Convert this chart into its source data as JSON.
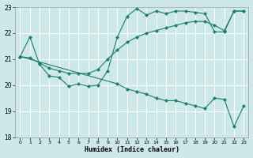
{
  "xlabel": "Humidex (Indice chaleur)",
  "bg_color": "#cce8e8",
  "line_color": "#1e7b70",
  "grid_color": "#ffffff",
  "xlim": [
    -0.5,
    23.5
  ],
  "ylim": [
    18,
    23
  ],
  "xticks": [
    0,
    1,
    2,
    3,
    4,
    5,
    6,
    7,
    8,
    9,
    10,
    11,
    12,
    13,
    14,
    15,
    16,
    17,
    18,
    19,
    20,
    21,
    22,
    23
  ],
  "yticks": [
    18,
    19,
    20,
    21,
    22,
    23
  ],
  "line1_x": [
    0,
    1,
    2,
    3,
    4,
    5,
    6,
    7,
    8,
    9,
    10,
    11,
    12,
    13,
    14,
    15,
    16,
    17,
    18,
    19,
    20,
    21,
    22,
    23
  ],
  "line1_y": [
    21.1,
    21.85,
    20.8,
    20.35,
    20.3,
    19.95,
    20.05,
    19.95,
    20.0,
    20.55,
    21.85,
    22.65,
    22.95,
    22.7,
    22.85,
    22.75,
    22.85,
    22.85,
    22.8,
    22.75,
    22.05,
    22.05,
    22.85,
    22.85
  ],
  "line2_x": [
    0,
    1,
    2,
    3,
    4,
    5,
    6,
    7,
    8,
    9,
    10,
    11,
    12,
    13,
    14,
    15,
    16,
    17,
    18,
    19,
    20,
    21,
    22,
    23
  ],
  "line2_y": [
    21.1,
    21.05,
    20.85,
    20.65,
    20.55,
    20.45,
    20.45,
    20.45,
    20.6,
    21.0,
    21.35,
    21.65,
    21.85,
    22.0,
    22.1,
    22.2,
    22.3,
    22.4,
    22.45,
    22.45,
    22.3,
    22.1,
    22.85,
    22.85
  ],
  "line3_x": [
    0,
    10,
    11,
    12,
    13,
    14,
    15,
    16,
    17,
    18,
    19,
    20,
    21,
    22,
    23
  ],
  "line3_y": [
    21.1,
    20.05,
    19.85,
    19.75,
    19.65,
    19.5,
    19.4,
    19.4,
    19.3,
    19.2,
    19.1,
    19.5,
    19.45,
    18.4,
    19.2
  ]
}
